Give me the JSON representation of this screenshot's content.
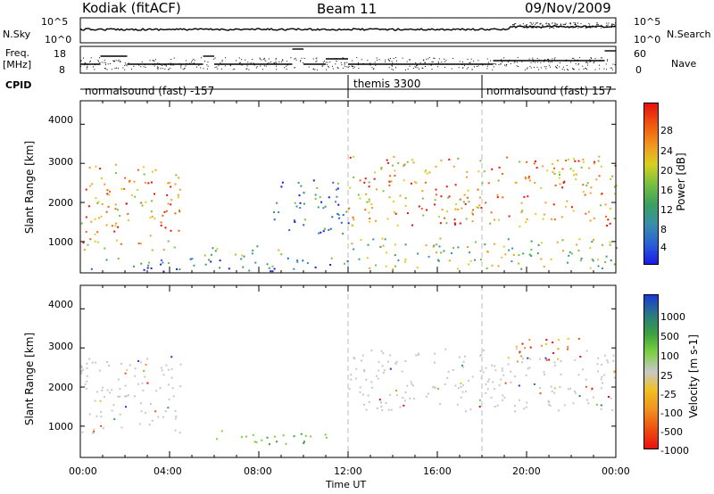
{
  "header": {
    "station": "Kodiak (fitACF)",
    "beam": "Beam 11",
    "date": "09/Nov/2009"
  },
  "status_panel": {
    "nsky_label": "N.Sky",
    "nsky_ticks": [
      "10^5",
      "10^0"
    ],
    "nsearch_label": "N.Search",
    "nsearch_ticks": [
      "10^5",
      "10^0"
    ],
    "freq_label_line1": "Freq.",
    "freq_label_line2": "[MHz]",
    "freq_ticks": [
      "18",
      "8"
    ],
    "nave_label": "Nave",
    "nave_ticks": [
      "60",
      "0"
    ],
    "cpid_label": "CPID",
    "cpid_segments": [
      {
        "label": "normalsound (fast) -157",
        "start_hour": 0
      },
      {
        "label": "themis 3300",
        "start_hour": 12
      },
      {
        "label": "normalsound (fast) 157",
        "start_hour": 18
      }
    ]
  },
  "chart_data": [
    {
      "type": "heatmap",
      "name": "Power",
      "xlabel": "",
      "ylabel": "Slant Range [km]",
      "xlim_hours": [
        0,
        24
      ],
      "ylim_km": [
        200,
        4600
      ],
      "y_ticks": [
        "1000",
        "2000",
        "3000",
        "4000"
      ],
      "colorbar": {
        "label": "Power [dB]",
        "ticks": [
          "28",
          "24",
          "20",
          "16",
          "12",
          "8",
          "4"
        ],
        "range": [
          0,
          30
        ],
        "colors": [
          "#1a1ae6",
          "#2a5fd6",
          "#3a8fa8",
          "#3aa060",
          "#7ac040",
          "#d8d020",
          "#f0a020",
          "#f06010",
          "#e81010"
        ]
      },
      "scatter_regions": [
        {
          "x": [
            0.0,
            4.5
          ],
          "y": [
            800,
            3000
          ],
          "level": "high"
        },
        {
          "x": [
            0.0,
            12.0
          ],
          "y": [
            250,
            600
          ],
          "level": "low"
        },
        {
          "x": [
            5.5,
            9.5
          ],
          "y": [
            600,
            900
          ],
          "level": "mid"
        },
        {
          "x": [
            8.5,
            12.0
          ],
          "y": [
            1200,
            2600
          ],
          "level": "low"
        },
        {
          "x": [
            12.0,
            24.0
          ],
          "y": [
            1400,
            3200
          ],
          "level": "high"
        },
        {
          "x": [
            12.0,
            24.0
          ],
          "y": [
            300,
            1100
          ],
          "level": "mid"
        }
      ]
    },
    {
      "type": "heatmap",
      "name": "Velocity",
      "xlabel": "Time UT",
      "ylabel": "Slant Range [km]",
      "xlim_hours": [
        0,
        24
      ],
      "ylim_km": [
        200,
        4600
      ],
      "y_ticks": [
        "1000",
        "2000",
        "3000",
        "4000"
      ],
      "x_ticks": [
        "00:00",
        "04:00",
        "08:00",
        "12:00",
        "16:00",
        "20:00",
        "00:00"
      ],
      "colorbar": {
        "label": "Velocity [m s-1]",
        "ticks": [
          "1000",
          "500",
          "100",
          "25",
          "-25",
          "-100",
          "-500",
          "-1000"
        ],
        "colors": [
          "#1a3ad6",
          "#2a7a80",
          "#3aa040",
          "#7ad040",
          "#c8c8c8",
          "#f0c020",
          "#f09020",
          "#f05010",
          "#e81010"
        ]
      },
      "scatter_regions": [
        {
          "x": [
            0.0,
            4.5
          ],
          "y": [
            800,
            2800
          ],
          "level": "ground"
        },
        {
          "x": [
            6.0,
            11.0
          ],
          "y": [
            500,
            900
          ],
          "level": "positive"
        },
        {
          "x": [
            12.0,
            24.0
          ],
          "y": [
            1400,
            3000
          ],
          "level": "ground"
        },
        {
          "x": [
            19.5,
            22.5
          ],
          "y": [
            2700,
            3300
          ],
          "level": "negative"
        }
      ]
    }
  ]
}
